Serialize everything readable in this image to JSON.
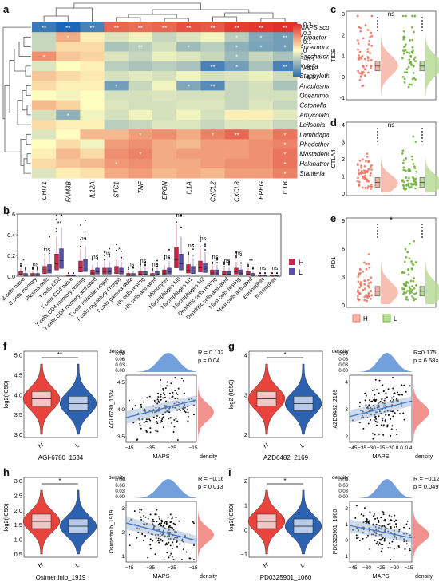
{
  "panel_labels": [
    "a",
    "b",
    "c",
    "d",
    "e",
    "f",
    "g",
    "h",
    "i"
  ],
  "colors": {
    "high": "#e5312f",
    "low": "#2f6db5",
    "h_group": "#e8433c",
    "l_group": "#2d62b0",
    "green": "#72b23a",
    "salmon": "#ef7a63",
    "blue_density": "#5b8fd6",
    "red_density": "#ef7f7a"
  },
  "chart_data": [
    {
      "id": "a",
      "type": "heatmap",
      "rows": [
        "MAPS score",
        "Apibacter",
        "Aureimonas",
        "Saccharomonospora",
        "Xylella",
        "Staphylothermus",
        "Anaplasma",
        "Oceanimonas",
        "Catonella",
        "Amycolatopsis",
        "Leifsonia",
        "Lambdapapillomavirus",
        "Rhodothermus",
        "Mastadenovirus",
        "Halonatronum",
        "Stanieria"
      ],
      "columns": [
        "CHIT1",
        "FAM3B",
        "IL12A",
        "STC1",
        "TNF",
        "EPGN",
        "IL1A",
        "CXCL2",
        "CXCL8",
        "EREG",
        "IL1B"
      ],
      "values": [
        [
          -0.28,
          -0.32,
          -0.26,
          0.22,
          0.21,
          0.22,
          0.25,
          0.24,
          0.28,
          0.29,
          0.3
        ],
        [
          -0.08,
          0.12,
          0.02,
          -0.05,
          -0.02,
          -0.08,
          -0.05,
          -0.02,
          -0.1,
          -0.18,
          -0.2
        ],
        [
          -0.08,
          0.05,
          0.05,
          -0.12,
          -0.1,
          -0.06,
          -0.14,
          -0.1,
          -0.16,
          -0.19,
          -0.2
        ],
        [
          0.16,
          0.08,
          0.06,
          -0.05,
          -0.08,
          -0.03,
          -0.05,
          -0.08,
          -0.14,
          -0.08,
          -0.12
        ],
        [
          -0.05,
          0.0,
          0.02,
          -0.1,
          -0.12,
          -0.1,
          -0.12,
          -0.26,
          -0.2,
          -0.12,
          -0.26
        ],
        [
          0.08,
          0.05,
          0.03,
          -0.06,
          -0.04,
          -0.06,
          -0.02,
          -0.06,
          -0.05,
          -0.03,
          -0.07
        ],
        [
          0.05,
          0.02,
          0.02,
          -0.2,
          -0.08,
          -0.02,
          -0.18,
          -0.24,
          -0.08,
          -0.06,
          -0.12
        ],
        [
          0.0,
          -0.02,
          0.0,
          -0.06,
          -0.06,
          -0.05,
          -0.06,
          -0.06,
          -0.08,
          -0.06,
          -0.06
        ],
        [
          0.1,
          0.06,
          0.0,
          -0.05,
          -0.06,
          -0.06,
          -0.05,
          -0.05,
          -0.08,
          -0.05,
          -0.08
        ],
        [
          -0.06,
          -0.16,
          -0.02,
          -0.06,
          -0.02,
          -0.06,
          -0.02,
          -0.06,
          0.02,
          0.02,
          -0.04
        ],
        [
          0.05,
          0.02,
          0.02,
          -0.1,
          -0.08,
          -0.05,
          -0.05,
          -0.08,
          -0.05,
          -0.05,
          -0.08
        ],
        [
          -0.05,
          0.0,
          0.1,
          0.1,
          0.14,
          0.16,
          0.12,
          0.18,
          0.22,
          0.14,
          0.2
        ],
        [
          0.0,
          0.05,
          -0.02,
          0.14,
          0.16,
          0.12,
          0.1,
          0.14,
          0.14,
          0.16,
          0.18
        ],
        [
          0.02,
          0.1,
          0.05,
          0.16,
          0.18,
          0.12,
          0.14,
          0.14,
          0.14,
          0.16,
          0.2
        ],
        [
          0.05,
          0.08,
          0.1,
          0.15,
          0.16,
          0.12,
          0.12,
          0.14,
          0.16,
          0.16,
          0.2
        ],
        [
          -0.05,
          0.02,
          0.04,
          0.12,
          0.14,
          0.1,
          0.12,
          0.1,
          0.14,
          0.14,
          0.18
        ]
      ],
      "stars": [
        [
          "**",
          "**",
          "**",
          "**",
          "**",
          "**",
          "**",
          "**",
          "**",
          "**",
          "**"
        ],
        [
          "",
          "*",
          "",
          "",
          "",
          "",
          "",
          "",
          "*",
          "*",
          "**"
        ],
        [
          "",
          "",
          "",
          "",
          "**",
          "",
          "*",
          "",
          "*",
          "*",
          "*"
        ],
        [
          "*",
          "",
          "",
          "",
          "",
          "",
          "",
          "",
          "*",
          "",
          ""
        ],
        [
          "",
          "",
          "",
          "",
          "",
          "",
          "",
          "**",
          "*",
          "",
          "**"
        ],
        [
          "",
          "",
          "",
          "",
          "",
          "",
          "",
          "",
          "",
          "",
          ""
        ],
        [
          "",
          "",
          "",
          "*",
          "",
          "",
          "*",
          "**",
          "",
          "",
          ""
        ],
        [
          "",
          "",
          "",
          "",
          "",
          "",
          "",
          "",
          "",
          "",
          ""
        ],
        [
          "",
          "",
          "",
          "",
          "",
          "",
          "",
          "",
          "",
          "",
          ""
        ],
        [
          "",
          "*",
          "",
          "",
          "",
          "",
          "",
          "",
          "",
          "",
          ""
        ],
        [
          "",
          "",
          "",
          "",
          "",
          "",
          "",
          "",
          "",
          "",
          ""
        ],
        [
          "",
          "",
          "",
          "",
          "*",
          "",
          "",
          "*",
          "**",
          "",
          "*"
        ],
        [
          "",
          "",
          "",
          "",
          "",
          "",
          "",
          "",
          "",
          "",
          "*"
        ],
        [
          "",
          "",
          "",
          "",
          "*",
          "",
          "",
          "",
          "",
          "",
          "*"
        ],
        [
          "",
          "",
          "",
          "*",
          "",
          "",
          "",
          "",
          "",
          "",
          "*"
        ],
        [
          "",
          "",
          "",
          "",
          "",
          "",
          "",
          "",
          "",
          "",
          "*"
        ]
      ],
      "legend_ticks": [
        "0.3",
        "0.2",
        "0.1",
        "0",
        "−0.1",
        "−0.2",
        "−0.3"
      ],
      "vmin": -0.3,
      "vmax": 0.3
    },
    {
      "id": "b",
      "type": "box",
      "categories": [
        "B cells naive",
        "B cells memory",
        "Plasma cells",
        "T cells CD8",
        "T cells CD4 naive",
        "T cells CD4 memory resting",
        "T cells CD4 memory activated",
        "T cells follicular helper",
        "T cells regulatory (Tregs)",
        "T cells gamma delta",
        "NK cells resting",
        "NK cells activated",
        "Monocytes",
        "Macrophages M0",
        "Macrophages M1",
        "Macrophages M2",
        "Dendritic cells resting",
        "Dendritic cells activated",
        "Mast cells resting",
        "Mast cells activated",
        "Eosinophils",
        "Neutrophils"
      ],
      "significance": [
        "*",
        "ns",
        "ns",
        "**",
        "",
        "ns",
        "ns",
        "ns",
        "*",
        "ns",
        "ns",
        "ns",
        "ns",
        "ns",
        "ns",
        "ns",
        "ns",
        "ns",
        "ns",
        "**",
        "ns",
        "ns"
      ],
      "series": [
        {
          "name": "H",
          "medians": [
            0.02,
            0.01,
            0.05,
            0.12,
            0.0,
            0.08,
            0.03,
            0.04,
            0.05,
            0.01,
            0.02,
            0.01,
            0.03,
            0.16,
            0.06,
            0.08,
            0.03,
            0.02,
            0.04,
            0.02,
            0.0,
            0.0
          ]
        },
        {
          "name": "L",
          "medians": [
            0.01,
            0.01,
            0.06,
            0.15,
            0.0,
            0.09,
            0.04,
            0.04,
            0.04,
            0.01,
            0.02,
            0.02,
            0.04,
            0.12,
            0.05,
            0.07,
            0.03,
            0.02,
            0.03,
            0.01,
            0.0,
            0.0
          ]
        }
      ],
      "ylim": [
        0,
        0.6
      ],
      "yticks": [
        "0.0",
        "0.2",
        "0.4",
        "0.6"
      ],
      "legend": [
        "H",
        "L"
      ]
    },
    {
      "id": "c",
      "type": "raincloud",
      "ylabel": "TIDE",
      "yticks": [
        "-1",
        "0",
        "1",
        "2",
        "3"
      ],
      "annotation": "ns",
      "series": [
        {
          "name": "H",
          "median": 0.1
        },
        {
          "name": "L",
          "median": 0.1
        }
      ]
    },
    {
      "id": "d",
      "type": "raincloud",
      "ylabel": "CTLA4",
      "yticks": [
        "0",
        "1",
        "2",
        "3",
        "4"
      ],
      "annotation": "ns",
      "series": [
        {
          "name": "H",
          "median": 0.8
        },
        {
          "name": "L",
          "median": 0.9
        }
      ]
    },
    {
      "id": "e",
      "type": "raincloud",
      "ylabel": "PD1",
      "yticks": [
        "0",
        "3",
        "6",
        "9"
      ],
      "annotation": "*",
      "legend": [
        "H",
        "L"
      ],
      "series": [
        {
          "name": "H",
          "median": 1.0
        },
        {
          "name": "L",
          "median": 1.8
        }
      ]
    },
    {
      "id": "f_violin",
      "type": "violin",
      "xlabel": "AGI-6780_1634",
      "ylabel": "log2(IC50)",
      "categories": [
        "H",
        "L"
      ],
      "yticks": [
        "3.0",
        "3.5",
        "4.0",
        "4.5",
        "5.0"
      ],
      "annotation": "**",
      "medians": [
        4.3,
        4.15
      ]
    },
    {
      "id": "f_scatter",
      "type": "scatter",
      "xlabel": "MAPS",
      "ylabel": "AGI-6780_1634",
      "xticks": [
        "−45",
        "−35",
        "−25",
        "−15"
      ],
      "yticks": [
        "3.5",
        "4.0",
        "4.5"
      ],
      "density_ticks_x": [
        "0.00",
        "0.03",
        "0.06",
        "0.09"
      ],
      "density_ticks_y": [
        "0.0",
        "0.6",
        "1.2"
      ],
      "density_label": "density",
      "r": "R = 0.132",
      "p": "p = 0.04"
    },
    {
      "id": "g_violin",
      "type": "violin",
      "xlabel": "AZD6482_2169",
      "ylabel": "log2 (IC50)",
      "categories": [
        "H",
        "L"
      ],
      "yticks": [
        "2",
        "3",
        "4"
      ],
      "annotation": "*",
      "medians": [
        3.35,
        3.2
      ]
    },
    {
      "id": "g_scatter",
      "type": "scatter",
      "xlabel": "MAPS",
      "ylabel": "AZD6482_2169",
      "xticks": [
        "−45",
        "−35",
        "−30",
        "−25",
        "−20",
        "0.0",
        "0.4"
      ],
      "yticks": [
        "2",
        "3",
        "4"
      ],
      "density_ticks_x": [
        "0.00",
        "0.03",
        "0.06",
        "0.09"
      ],
      "density_label": "density",
      "r": "R=0.175",
      "p": "p = 6.58×10⁻³"
    },
    {
      "id": "h_violin",
      "type": "violin",
      "xlabel": "Osimertinib_1919",
      "ylabel": "log2(IC50)",
      "categories": [
        "H",
        "L"
      ],
      "yticks": [
        "0.5",
        "1.0",
        "1.5",
        "2.0",
        "2.5",
        "3.0"
      ],
      "annotation": "*",
      "medians": [
        1.35,
        1.55
      ]
    },
    {
      "id": "h_scatter",
      "type": "scatter",
      "xlabel": "MAPS",
      "ylabel": "Osimertinib_1919",
      "xticks": [
        "−45",
        "−35",
        "−25",
        "−15"
      ],
      "yticks": [
        "1",
        "2",
        "3"
      ],
      "density_ticks_x": [
        "0.00",
        "0.03",
        "0.06",
        "0.09"
      ],
      "density_label": "density",
      "r": "R = −0.16",
      "p": "p = 0.013"
    },
    {
      "id": "i_violin",
      "type": "violin",
      "xlabel": "PD0325901_1060",
      "ylabel": "log2(IC50)",
      "categories": [
        "H",
        "L"
      ],
      "yticks": [
        "−1",
        "0",
        "1",
        "2"
      ],
      "annotation": "*",
      "medians": [
        0.2,
        0.45
      ]
    },
    {
      "id": "i_scatter",
      "type": "scatter",
      "xlabel": "MAPS",
      "ylabel": "PD0325901_1060",
      "xticks": [
        "−45",
        "−30",
        "−25",
        "−20",
        "−15"
      ],
      "yticks": [
        "−1",
        "0",
        "1",
        "2"
      ],
      "density_ticks_x": [
        "0.00",
        "0.03",
        "0.06",
        "0.09"
      ],
      "density_label": "density",
      "r": "R = −0.127",
      "p": "p = 0.0499"
    }
  ]
}
